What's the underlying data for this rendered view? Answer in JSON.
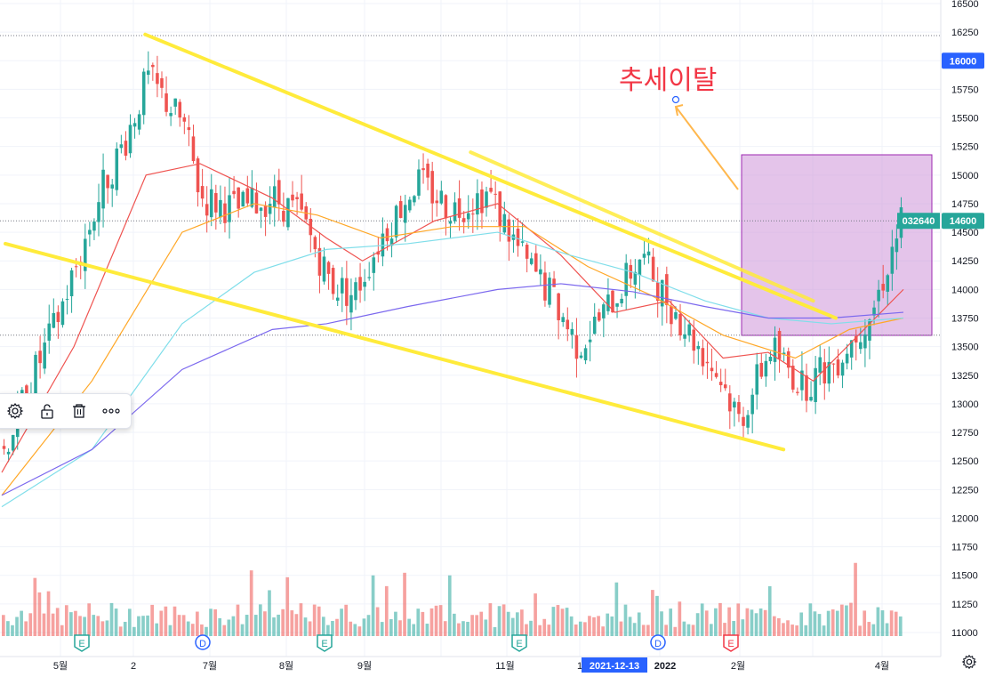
{
  "price_axis": {
    "ticks": [
      "16500",
      "16250",
      "16000",
      "15750",
      "15500",
      "15250",
      "15000",
      "14750",
      "14500",
      "14250",
      "14000",
      "13750",
      "13500",
      "13250",
      "13000",
      "12750",
      "12500",
      "12250",
      "12000",
      "11750",
      "11500",
      "11250",
      "11000"
    ],
    "badges": [
      {
        "text": "16000",
        "color": "#2962ff"
      },
      {
        "text": "14600",
        "color": "#26a69a"
      }
    ]
  },
  "symbol_label": {
    "text": "032640",
    "color": "#26a69a"
  },
  "time_axis": {
    "labels": [
      "5월",
      "2",
      "7월",
      "8월",
      "9월",
      "11월",
      "1",
      "2021-12-13",
      "2022",
      "2월",
      "4월"
    ],
    "highlight": "2021-12-13"
  },
  "annotation": {
    "text": "추세이탈",
    "color": "#f23645"
  },
  "event_markers": [
    {
      "label": "E",
      "kind": "earnings",
      "color": "#26a69a"
    },
    {
      "label": "D",
      "kind": "dividend",
      "color": "#2962ff"
    },
    {
      "label": "E",
      "kind": "earnings",
      "color": "#26a69a"
    },
    {
      "label": "E",
      "kind": "earnings",
      "color": "#26a69a"
    },
    {
      "label": "D",
      "kind": "dividend",
      "color": "#2962ff"
    },
    {
      "label": "E",
      "kind": "earnings",
      "color": "#f23645"
    }
  ],
  "toolbar": {
    "icons": [
      "settings-icon",
      "lock-icon",
      "trash-icon",
      "more-icon"
    ]
  },
  "colors": {
    "up": "#26a69a",
    "down": "#ef5350",
    "trendline": "#ffeb3b",
    "rectangle_fill": "#ce93d8",
    "rectangle_border": "#9c27b0",
    "ma_red": "#ef5350",
    "ma_orange": "#ffa726",
    "ma_cyan": "#80deea",
    "ma_purple": "#7b68ee",
    "grid": "#f0f3fa"
  },
  "chart_data": {
    "type": "candlestick",
    "y_range": [
      11000,
      16500
    ],
    "price_levels": [
      {
        "price": 16220,
        "style": "dotted"
      },
      {
        "price": 14600,
        "style": "dotted"
      },
      {
        "price": 13600,
        "style": "dotted"
      }
    ],
    "ohlc_path_x": [
      0,
      0.03,
      0.055,
      0.085,
      0.11,
      0.135,
      0.16,
      0.2,
      0.22,
      0.26,
      0.3,
      0.33,
      0.365,
      0.39,
      0.42,
      0.46,
      0.5,
      0.54,
      0.58,
      0.61,
      0.64,
      0.67,
      0.71,
      0.74,
      0.77,
      0.8,
      0.82,
      0.855,
      0.89,
      0.93,
      0.97,
      1.0
    ],
    "ohlc_path_close": [
      12600,
      13200,
      13650,
      14300,
      14900,
      15300,
      15850,
      15450,
      14800,
      14700,
      14800,
      14650,
      14050,
      13950,
      14450,
      14950,
      14700,
      14850,
      14250,
      13950,
      13500,
      13800,
      14300,
      13900,
      13550,
      13200,
      12850,
      13500,
      13150,
      13400,
      13850,
      14600
    ],
    "moving_averages": [
      {
        "color": "#ef5350",
        "x": [
          0,
          0.08,
          0.16,
          0.22,
          0.3,
          0.36,
          0.4,
          0.48,
          0.55,
          0.62,
          0.68,
          0.74,
          0.8,
          0.85,
          0.9,
          0.95,
          1.0
        ],
        "y": [
          12400,
          13500,
          15000,
          15100,
          14800,
          14450,
          14250,
          14600,
          14750,
          14300,
          13800,
          13900,
          13400,
          13450,
          13200,
          13600,
          14000
        ]
      },
      {
        "color": "#ffa726",
        "x": [
          0,
          0.1,
          0.2,
          0.28,
          0.35,
          0.42,
          0.5,
          0.58,
          0.65,
          0.72,
          0.8,
          0.88,
          0.94,
          1.0
        ],
        "y": [
          12200,
          13200,
          14500,
          14750,
          14650,
          14450,
          14550,
          14550,
          14200,
          13950,
          13600,
          13400,
          13650,
          13750
        ]
      },
      {
        "color": "#80deea",
        "x": [
          0,
          0.1,
          0.2,
          0.28,
          0.36,
          0.45,
          0.55,
          0.63,
          0.7,
          0.78,
          0.85,
          0.92,
          1.0
        ],
        "y": [
          12100,
          12600,
          13700,
          14150,
          14350,
          14400,
          14500,
          14300,
          14150,
          13900,
          13750,
          13700,
          13750
        ]
      },
      {
        "color": "#7b68ee",
        "x": [
          0,
          0.1,
          0.2,
          0.3,
          0.36,
          0.45,
          0.55,
          0.62,
          0.7,
          0.78,
          0.85,
          0.92,
          1.0
        ],
        "y": [
          12200,
          12600,
          13300,
          13650,
          13700,
          13850,
          14000,
          14050,
          13980,
          13850,
          13750,
          13750,
          13800
        ]
      }
    ],
    "trendlines": [
      {
        "x": [
          0.159,
          0.925
        ],
        "y": [
          16230,
          13750
        ]
      },
      {
        "x": [
          0.004,
          0.867
        ],
        "y": [
          14400,
          12600
        ]
      },
      {
        "x": [
          0.52,
          0.9
        ],
        "y": [
          15200,
          13900
        ]
      }
    ],
    "volume_range": [
      0,
      1
    ]
  }
}
